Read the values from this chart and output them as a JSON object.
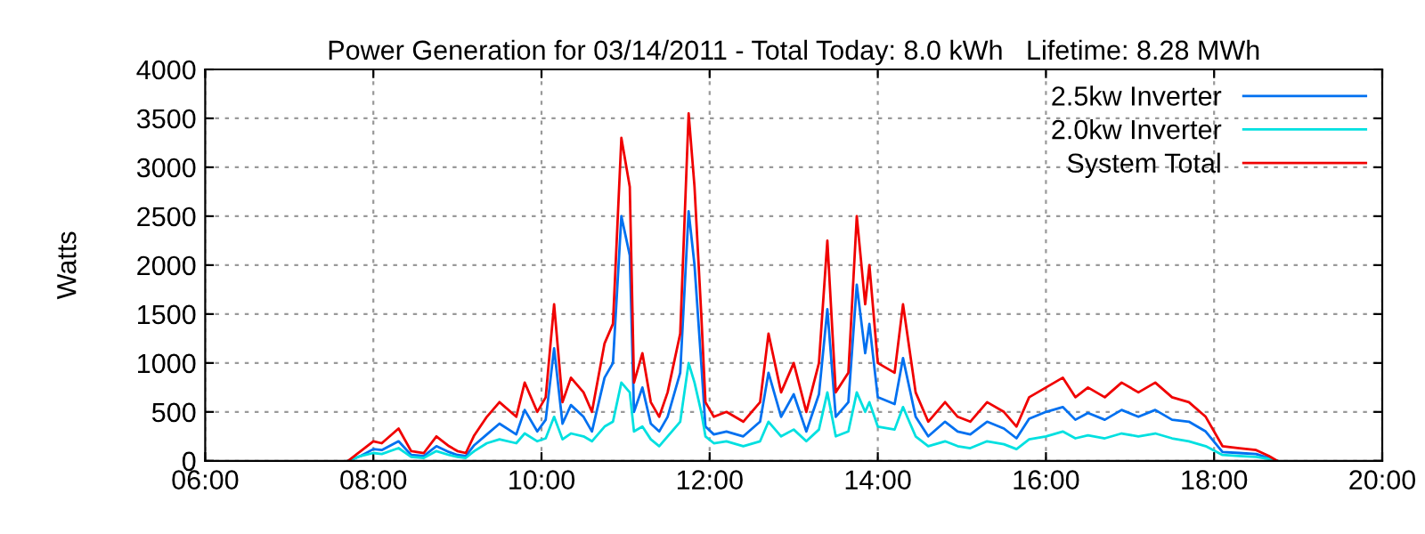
{
  "chart_data": {
    "type": "line",
    "title": "Power Generation for 03/14/2011 - Total Today: 8.0 kWh   Lifetime: 8.28 MWh",
    "ylabel": "Watts",
    "x": [
      7.7,
      7.85,
      8.0,
      8.1,
      8.3,
      8.45,
      8.6,
      8.75,
      8.9,
      9.0,
      9.1,
      9.2,
      9.35,
      9.5,
      9.7,
      9.8,
      9.95,
      10.05,
      10.15,
      10.25,
      10.35,
      10.5,
      10.6,
      10.75,
      10.85,
      10.95,
      11.05,
      11.1,
      11.2,
      11.3,
      11.4,
      11.5,
      11.65,
      11.75,
      11.82,
      11.9,
      11.95,
      12.05,
      12.2,
      12.4,
      12.6,
      12.7,
      12.85,
      13.0,
      13.15,
      13.3,
      13.4,
      13.5,
      13.65,
      13.75,
      13.85,
      13.9,
      14.0,
      14.2,
      14.3,
      14.45,
      14.6,
      14.8,
      14.95,
      15.1,
      15.3,
      15.5,
      15.65,
      15.8,
      16.0,
      16.2,
      16.35,
      16.5,
      16.7,
      16.9,
      17.1,
      17.3,
      17.5,
      17.7,
      17.9,
      18.1,
      18.3,
      18.5,
      18.65,
      18.75
    ],
    "series": [
      {
        "name": "2.5kw Inverter",
        "color": "#0070f0",
        "values": [
          0,
          50,
          120,
          110,
          200,
          60,
          50,
          150,
          90,
          60,
          50,
          160,
          270,
          380,
          270,
          520,
          300,
          420,
          1150,
          380,
          570,
          450,
          300,
          850,
          1000,
          2500,
          2100,
          500,
          750,
          380,
          300,
          450,
          900,
          2550,
          2000,
          1000,
          350,
          270,
          300,
          250,
          400,
          900,
          450,
          680,
          300,
          680,
          1550,
          450,
          600,
          1800,
          1100,
          1400,
          650,
          580,
          1050,
          450,
          250,
          400,
          300,
          270,
          400,
          330,
          230,
          430,
          500,
          550,
          420,
          490,
          420,
          520,
          450,
          520,
          420,
          400,
          300,
          90,
          80,
          70,
          30,
          0
        ]
      },
      {
        "name": "2.0kw Inverter",
        "color": "#00e0e0",
        "values": [
          0,
          50,
          80,
          70,
          130,
          40,
          30,
          100,
          60,
          40,
          30,
          100,
          180,
          220,
          180,
          280,
          200,
          230,
          450,
          220,
          280,
          250,
          200,
          350,
          400,
          800,
          700,
          300,
          350,
          220,
          150,
          250,
          400,
          1000,
          800,
          500,
          250,
          180,
          200,
          150,
          200,
          400,
          250,
          320,
          200,
          320,
          700,
          250,
          300,
          700,
          500,
          600,
          350,
          320,
          550,
          250,
          150,
          200,
          150,
          130,
          200,
          170,
          120,
          220,
          250,
          300,
          230,
          260,
          230,
          280,
          250,
          280,
          230,
          200,
          150,
          60,
          50,
          40,
          20,
          0
        ]
      },
      {
        "name": "System Total",
        "color": "#f00000",
        "values": [
          0,
          100,
          200,
          180,
          330,
          100,
          80,
          250,
          150,
          100,
          80,
          260,
          450,
          600,
          450,
          800,
          500,
          650,
          1600,
          600,
          850,
          700,
          500,
          1200,
          1400,
          3300,
          2800,
          800,
          1100,
          600,
          450,
          700,
          1300,
          3550,
          2800,
          1500,
          600,
          450,
          500,
          400,
          600,
          1300,
          700,
          1000,
          500,
          1000,
          2250,
          700,
          900,
          2500,
          1600,
          2000,
          1000,
          900,
          1600,
          700,
          400,
          600,
          450,
          400,
          600,
          500,
          350,
          650,
          750,
          850,
          650,
          750,
          650,
          800,
          700,
          800,
          650,
          600,
          450,
          150,
          130,
          110,
          50,
          0
        ]
      }
    ],
    "xlim": [
      6,
      20
    ],
    "xticks": [
      {
        "value": 6,
        "label": "06:00"
      },
      {
        "value": 8,
        "label": "08:00"
      },
      {
        "value": 10,
        "label": "10:00"
      },
      {
        "value": 12,
        "label": "12:00"
      },
      {
        "value": 14,
        "label": "14:00"
      },
      {
        "value": 16,
        "label": "16:00"
      },
      {
        "value": 18,
        "label": "18:00"
      },
      {
        "value": 20,
        "label": "20:00"
      }
    ],
    "ylim": [
      0,
      4000
    ],
    "yticks": [
      0,
      500,
      1000,
      1500,
      2000,
      2500,
      3000,
      3500,
      4000
    ],
    "grid": true,
    "legend": "top right",
    "marker": "none",
    "line_style": "solid"
  }
}
